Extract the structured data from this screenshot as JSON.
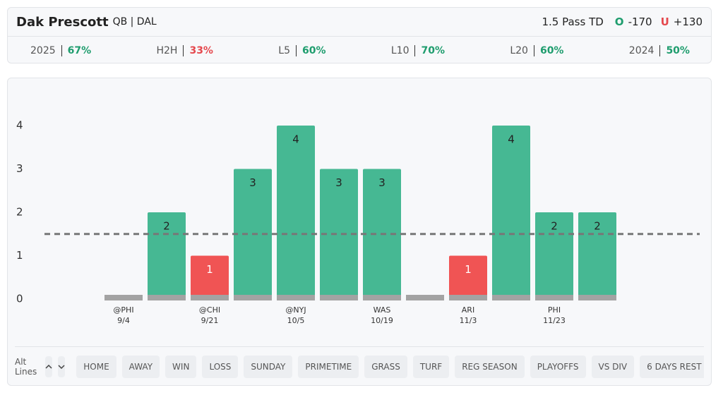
{
  "header": {
    "player": "Dak Prescott",
    "position": "QB | DAL",
    "prop": "1.5 Pass TD",
    "over_label": "O",
    "over_odds": "-170",
    "under_label": "U",
    "under_odds": "+130"
  },
  "stats": [
    {
      "label": "2025",
      "value": "67%",
      "color": "#1f9d6e"
    },
    {
      "label": "H2H",
      "value": "33%",
      "color": "#e5484d"
    },
    {
      "label": "L5",
      "value": "60%",
      "color": "#1f9d6e"
    },
    {
      "label": "L10",
      "value": "70%",
      "color": "#1f9d6e"
    },
    {
      "label": "L20",
      "value": "60%",
      "color": "#1f9d6e"
    },
    {
      "label": "2024",
      "value": "50%",
      "color": "#1f9d6e"
    }
  ],
  "chart_data": {
    "type": "bar",
    "categories": [
      "@PHI",
      null,
      "@CHI",
      null,
      "@NYJ",
      null,
      "WAS",
      null,
      "ARI",
      null,
      "PHI",
      null
    ],
    "dates": [
      "9/4",
      null,
      "9/21",
      null,
      "10/5",
      null,
      "10/19",
      null,
      "11/3",
      null,
      "11/23",
      null
    ],
    "values": [
      0,
      2,
      1,
      3,
      4,
      3,
      3,
      0,
      1,
      4,
      2,
      2
    ],
    "line": 1.5,
    "ylim": [
      0,
      4
    ],
    "yticks": [
      0,
      1,
      2,
      3,
      4
    ],
    "over_color": "#46b893",
    "under_color": "#f05454",
    "base_color": "#a3a3a3"
  },
  "footer": {
    "alt_lines": "Alt Lines",
    "filters": [
      "HOME",
      "AWAY",
      "WIN",
      "LOSS",
      "SUNDAY",
      "PRIMETIME",
      "GRASS",
      "TURF",
      "REG SEASON",
      "PLAYOFFS",
      "VS DIV",
      "6 DAYS REST"
    ]
  }
}
